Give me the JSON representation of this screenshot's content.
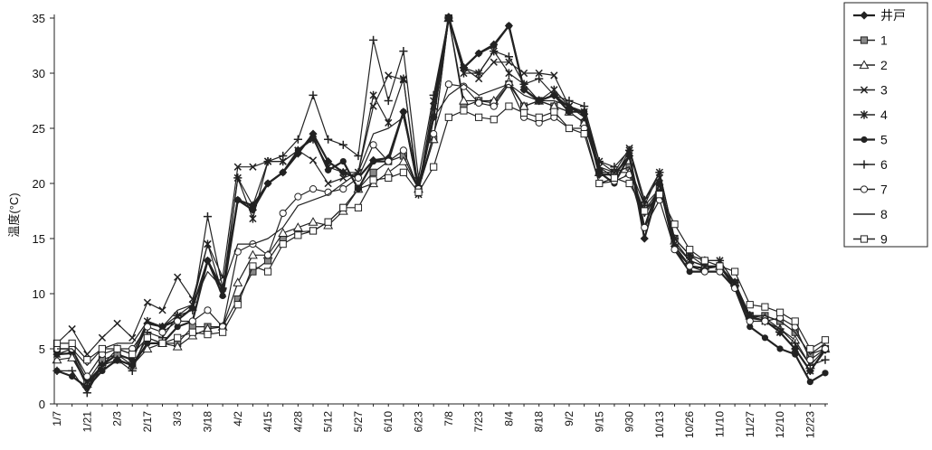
{
  "chart_data": {
    "type": "line",
    "title": "",
    "xlabel": "",
    "ylabel": "温度(°C)",
    "ylim": [
      0,
      35
    ],
    "yticks": [
      0,
      5,
      10,
      15,
      20,
      25,
      30,
      35
    ],
    "grid": false,
    "legend_position": "top-right",
    "x_tick_labels": [
      "1/7",
      "1/21",
      "2/3",
      "2/17",
      "3/3",
      "3/18",
      "4/2",
      "4/15",
      "4/28",
      "5/12",
      "5/27",
      "6/10",
      "6/23",
      "7/8",
      "7/23",
      "8/4",
      "8/18",
      "9/2",
      "9/15",
      "9/30",
      "10/13",
      "10/26",
      "11/10",
      "11/27",
      "12/10",
      "12/23"
    ],
    "x": [
      "1/7",
      "1/14",
      "1/21",
      "1/28",
      "2/3",
      "2/10",
      "2/17",
      "2/24",
      "3/3",
      "3/10",
      "3/18",
      "3/25",
      "4/2",
      "4/8",
      "4/15",
      "4/21",
      "4/28",
      "5/5",
      "5/12",
      "5/19",
      "5/27",
      "6/3",
      "6/10",
      "6/17",
      "6/23",
      "7/1",
      "7/8",
      "7/15",
      "7/23",
      "7/30",
      "8/4",
      "8/11",
      "8/18",
      "8/25",
      "9/2",
      "9/9",
      "9/15",
      "9/22",
      "9/30",
      "10/6",
      "10/13",
      "10/19",
      "10/26",
      "11/3",
      "11/10",
      "11/18",
      "11/27",
      "12/3",
      "12/10",
      "12/16",
      "12/23",
      "12/30"
    ],
    "series": [
      {
        "name": "井戸",
        "marker": "diamond-filled",
        "values": [
          4.5,
          4.6,
          1.6,
          3.5,
          4.5,
          4.0,
          7.3,
          7.0,
          7.6,
          8.7,
          13.0,
          10.4,
          18.5,
          17.6,
          20.0,
          21.0,
          22.7,
          24.5,
          22.0,
          21.0,
          20.5,
          22.1,
          22.3,
          26.5,
          19.5,
          26.0,
          35.1,
          30.5,
          31.8,
          32.6,
          34.3,
          28.5,
          27.5,
          28.0,
          26.9,
          26.3,
          20.8,
          20.8,
          22.5,
          15.0,
          19.9,
          14.3,
          12.5,
          12.3,
          12.5,
          10.6,
          7.8,
          7.6,
          6.5,
          5.0,
          3.0,
          4.9
        ]
      },
      {
        "name": "1",
        "marker": "square-dot",
        "values": [
          5.0,
          5.0,
          2.0,
          4.0,
          4.5,
          3.5,
          6.0,
          5.5,
          5.5,
          7.0,
          7.0,
          7.0,
          9.5,
          12.0,
          13.0,
          15.0,
          15.6,
          15.7,
          16.5,
          17.8,
          19.5,
          21.0,
          22.0,
          22.5,
          19.5,
          24.0,
          35.0,
          27.0,
          27.5,
          27.3,
          29.0,
          27.0,
          27.5,
          27.0,
          26.5,
          25.5,
          21.0,
          21.0,
          21.5,
          18.0,
          19.5,
          15.0,
          13.5,
          12.5,
          12.5,
          11.0,
          8.0,
          8.0,
          7.5,
          6.5,
          4.5,
          5.0
        ]
      },
      {
        "name": "2",
        "marker": "triangle",
        "values": [
          4.0,
          4.2,
          1.8,
          3.5,
          4.0,
          3.5,
          5.0,
          5.5,
          5.2,
          6.2,
          6.8,
          7.0,
          11.0,
          13.5,
          13.5,
          15.5,
          16.0,
          16.5,
          16.2,
          17.5,
          19.5,
          20.0,
          21.0,
          22.0,
          19.5,
          24.0,
          35.0,
          27.5,
          27.5,
          27.5,
          29.2,
          27.0,
          27.5,
          27.0,
          26.5,
          25.5,
          21.0,
          21.0,
          21.0,
          17.5,
          19.5,
          14.8,
          13.0,
          12.5,
          12.5,
          11.0,
          8.0,
          7.8,
          6.8,
          5.8,
          3.5,
          5.0
        ]
      },
      {
        "name": "3",
        "marker": "x",
        "values": [
          5.5,
          6.8,
          4.5,
          6.0,
          7.3,
          6.0,
          9.2,
          8.5,
          11.5,
          9.5,
          14.5,
          11.5,
          21.5,
          21.5,
          22.0,
          22.0,
          23.0,
          22.1,
          20.0,
          20.5,
          21.0,
          27.0,
          29.8,
          29.4,
          19.5,
          27.5,
          35.0,
          30.5,
          29.5,
          31.0,
          31.0,
          30.0,
          30.0,
          29.8,
          27.0,
          26.5,
          22.0,
          21.0,
          23.2,
          18.5,
          21.0,
          15.0,
          13.5,
          13.0,
          13.0,
          11.0,
          8.0,
          7.5,
          6.5,
          5.0,
          3.0,
          5.0
        ]
      },
      {
        "name": "4",
        "marker": "asterisk",
        "values": [
          4.5,
          5.0,
          2.0,
          3.5,
          5.0,
          4.5,
          7.5,
          7.0,
          8.0,
          9.0,
          14.5,
          10.0,
          20.5,
          16.8,
          22.0,
          22.0,
          23.0,
          24.0,
          21.5,
          21.0,
          21.0,
          28.0,
          25.5,
          29.5,
          19.0,
          27.0,
          35.0,
          30.0,
          30.0,
          32.0,
          30.0,
          29.0,
          27.5,
          28.5,
          27.0,
          26.0,
          21.5,
          20.5,
          23.0,
          18.5,
          20.5,
          14.5,
          13.0,
          12.5,
          12.5,
          10.8,
          8.0,
          7.5,
          6.5,
          5.0,
          3.0,
          5.0
        ]
      },
      {
        "name": "5",
        "marker": "circle-filled",
        "values": [
          3.0,
          2.5,
          1.5,
          3.0,
          4.0,
          3.5,
          5.5,
          5.5,
          7.0,
          7.5,
          13.0,
          9.8,
          18.5,
          18.0,
          20.0,
          21.0,
          23.0,
          24.2,
          21.2,
          22.0,
          19.5,
          22.0,
          22.0,
          26.5,
          19.5,
          26.0,
          35.0,
          30.5,
          31.8,
          32.5,
          34.3,
          28.5,
          27.5,
          28.0,
          26.5,
          26.5,
          21.0,
          20.0,
          22.5,
          16.0,
          20.0,
          14.0,
          12.0,
          12.0,
          12.0,
          10.5,
          7.0,
          6.0,
          5.0,
          4.5,
          2.0,
          2.8
        ]
      },
      {
        "name": "6",
        "marker": "plus",
        "values": [
          3.0,
          3.0,
          1.0,
          3.5,
          4.0,
          3.0,
          6.5,
          6.0,
          8.0,
          8.5,
          17.0,
          10.5,
          20.5,
          18.0,
          22.0,
          22.5,
          24.0,
          28.0,
          24.0,
          23.5,
          22.5,
          33.0,
          27.5,
          32.0,
          20.5,
          28.0,
          35.0,
          30.5,
          30.0,
          32.0,
          31.5,
          29.0,
          29.5,
          28.0,
          27.5,
          27.0,
          22.0,
          21.5,
          23.0,
          18.0,
          21.0,
          15.0,
          13.5,
          13.0,
          13.0,
          11.0,
          8.0,
          7.5,
          6.8,
          5.5,
          3.5,
          4.0
        ]
      },
      {
        "name": "7",
        "marker": "circle-open",
        "values": [
          5.0,
          5.0,
          2.5,
          4.5,
          5.0,
          5.0,
          7.0,
          6.5,
          7.5,
          7.5,
          8.5,
          7.0,
          13.8,
          14.5,
          13.5,
          17.3,
          18.8,
          19.5,
          19.2,
          19.5,
          20.5,
          23.5,
          22.0,
          23.0,
          19.5,
          24.5,
          29.0,
          28.8,
          27.3,
          27.0,
          29.0,
          26.0,
          25.5,
          26.0,
          25.0,
          25.0,
          20.0,
          20.2,
          20.8,
          16.0,
          18.5,
          14.0,
          12.5,
          12.0,
          12.0,
          10.5,
          7.5,
          7.5,
          7.8,
          7.0,
          4.0,
          5.0
        ]
      },
      {
        "name": "8",
        "marker": "none",
        "values": [
          5.0,
          5.0,
          3.5,
          5.0,
          5.5,
          5.5,
          7.5,
          7.0,
          8.5,
          9.0,
          12.0,
          10.5,
          14.5,
          14.5,
          15.0,
          16.0,
          18.0,
          18.5,
          19.0,
          20.0,
          21.0,
          24.5,
          25.0,
          26.0,
          20.0,
          26.0,
          28.0,
          29.0,
          28.0,
          28.5,
          29.0,
          28.0,
          27.5,
          27.5,
          27.0,
          26.5,
          21.5,
          21.0,
          21.5,
          17.0,
          19.5,
          14.5,
          13.0,
          12.5,
          12.5,
          11.0,
          8.0,
          8.0,
          7.5,
          6.5,
          4.5,
          5.5
        ]
      },
      {
        "name": "9",
        "marker": "square-open",
        "values": [
          5.5,
          5.5,
          4.0,
          5.0,
          5.0,
          4.5,
          6.0,
          5.5,
          6.0,
          6.5,
          6.3,
          6.5,
          9.0,
          12.5,
          12.0,
          14.5,
          15.3,
          15.7,
          16.5,
          17.8,
          17.8,
          20.3,
          20.5,
          21.0,
          19.2,
          21.5,
          26.0,
          26.6,
          26.0,
          25.8,
          27.0,
          26.4,
          26.0,
          26.5,
          25.0,
          24.5,
          20.0,
          20.5,
          20.0,
          17.5,
          19.0,
          16.3,
          14.0,
          13.0,
          12.5,
          12.0,
          9.0,
          8.8,
          8.3,
          7.5,
          5.0,
          5.8
        ]
      }
    ]
  }
}
